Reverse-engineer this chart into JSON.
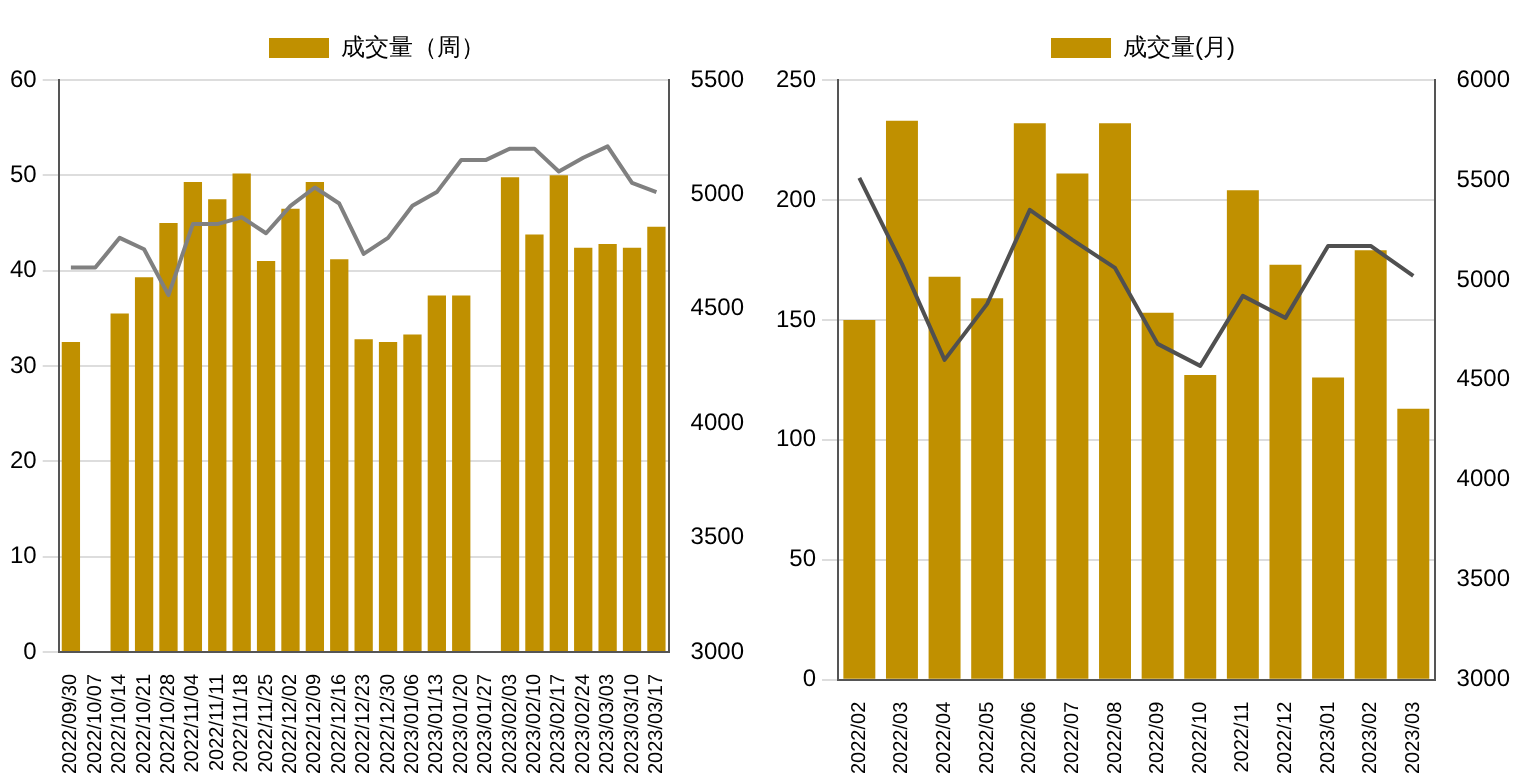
{
  "chart_data": [
    {
      "type": "bar",
      "categories": [
        "2022/09/30",
        "2022/10/07",
        "2022/10/14",
        "2022/10/21",
        "2022/10/28",
        "2022/11/04",
        "2022/11/11",
        "2022/11/18",
        "2022/11/25",
        "2022/12/02",
        "2022/12/09",
        "2022/12/16",
        "2022/12/23",
        "2022/12/30",
        "2023/01/06",
        "2023/01/13",
        "2023/01/20",
        "2023/01/27",
        "2023/02/03",
        "2023/02/10",
        "2023/02/17",
        "2023/02/24",
        "2023/03/03",
        "2023/03/10",
        "2023/03/17"
      ],
      "series": [
        {
          "name": "成交量（周）",
          "color": "#c09000",
          "values": [
            32.5,
            null,
            35.5,
            39.3,
            45,
            49.3,
            47.5,
            50.2,
            41,
            46.5,
            49.3,
            41.2,
            32.8,
            32.5,
            33.3,
            37.4,
            37.4,
            null,
            49.8,
            43.8,
            50,
            42.4,
            42.8,
            42.4,
            44.6
          ]
        },
        {
          "type": "line",
          "axis": "y2",
          "color": "#808080",
          "values": [
            4680,
            4680,
            4810,
            4760,
            4560,
            4870,
            4870,
            4900,
            4830,
            4950,
            5030,
            4960,
            4740,
            4810,
            4950,
            5010,
            5150,
            5150,
            5200,
            5200,
            5100,
            5160,
            5210,
            5050,
            5010
          ]
        }
      ],
      "ylim": [
        0,
        60
      ],
      "yticks": [
        0,
        10,
        20,
        30,
        40,
        50,
        60
      ],
      "y2lim": [
        3000,
        5500
      ],
      "y2ticks": [
        3000,
        3500,
        4000,
        4500,
        5000,
        5500
      ],
      "grid": "y",
      "legend": "top",
      "marker": "none"
    },
    {
      "type": "bar",
      "categories": [
        "2022/02",
        "2022/03",
        "2022/04",
        "2022/05",
        "2022/06",
        "2022/07",
        "2022/08",
        "2022/09",
        "2022/10",
        "2022/11",
        "2022/12",
        "2023/01",
        "2023/02",
        "2023/03"
      ],
      "series": [
        {
          "name": "成交量(月)",
          "color": "#c09000",
          "values": [
            150,
            233,
            168,
            159,
            232,
            211,
            232,
            153,
            127,
            204,
            173,
            126,
            179,
            113
          ]
        },
        {
          "type": "line",
          "axis": "y2",
          "color": "#505050",
          "values": [
            5510,
            5080,
            4600,
            4880,
            5350,
            5200,
            5060,
            4680,
            4570,
            4920,
            4810,
            5170,
            5170,
            5020
          ]
        }
      ],
      "ylim": [
        0,
        250
      ],
      "yticks": [
        0,
        50,
        100,
        150,
        200,
        250
      ],
      "y2lim": [
        3000,
        6000
      ],
      "y2ticks": [
        3000,
        3500,
        4000,
        4500,
        5000,
        5500,
        6000
      ],
      "grid": "y",
      "legend": "top",
      "marker": "none"
    }
  ]
}
